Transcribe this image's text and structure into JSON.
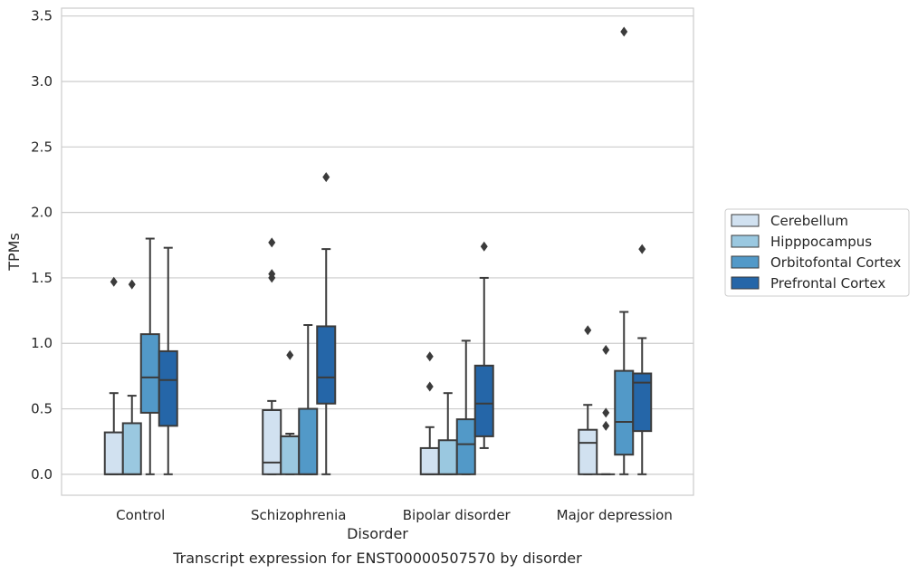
{
  "caption": "Transcript expression for ENST00000507570 by disorder",
  "chart_data": {
    "type": "box",
    "title": "",
    "xlabel": "Disorder",
    "ylabel": "TPMs",
    "categories": [
      "Control",
      "Schizophrenia",
      "Bipolar disorder",
      "Major depression"
    ],
    "ylim": [
      -0.16,
      3.56
    ],
    "yticks": [
      "0.0",
      "0.5",
      "1.0",
      "1.5",
      "2.0",
      "2.5",
      "3.0",
      "3.5"
    ],
    "grid": "horizontal",
    "legend_position": "right",
    "series": [
      {
        "name": "Cerebellum",
        "color": "#d1e1f0",
        "boxes": [
          {
            "q1": 0.0,
            "median": 0.0,
            "q3": 0.32,
            "whisker_low": 0.0,
            "whisker_high": 0.62,
            "outliers": [
              1.47
            ]
          },
          {
            "q1": 0.0,
            "median": 0.09,
            "q3": 0.49,
            "whisker_low": 0.0,
            "whisker_high": 0.56,
            "outliers": [
              1.5,
              1.53,
              1.77
            ]
          },
          {
            "q1": 0.0,
            "median": 0.0,
            "q3": 0.2,
            "whisker_low": 0.0,
            "whisker_high": 0.36,
            "outliers": [
              0.67,
              0.9
            ]
          },
          {
            "q1": 0.0,
            "median": 0.24,
            "q3": 0.34,
            "whisker_low": 0.0,
            "whisker_high": 0.53,
            "outliers": [
              1.1
            ]
          }
        ]
      },
      {
        "name": "Hipppocampus",
        "color": "#9ac8e0",
        "boxes": [
          {
            "q1": 0.0,
            "median": 0.0,
            "q3": 0.39,
            "whisker_low": 0.0,
            "whisker_high": 0.6,
            "outliers": [
              1.45
            ]
          },
          {
            "q1": 0.0,
            "median": 0.29,
            "q3": 0.29,
            "whisker_low": 0.0,
            "whisker_high": 0.31,
            "outliers": [
              0.91
            ]
          },
          {
            "q1": 0.0,
            "median": 0.0,
            "q3": 0.26,
            "whisker_low": 0.0,
            "whisker_high": 0.62,
            "outliers": []
          },
          {
            "q1": 0.0,
            "median": 0.0,
            "q3": 0.0,
            "whisker_low": 0.0,
            "whisker_high": 0.0,
            "outliers": [
              0.37,
              0.47,
              0.95
            ]
          }
        ]
      },
      {
        "name": "Orbitofontal Cortex",
        "color": "#5299c8",
        "boxes": [
          {
            "q1": 0.47,
            "median": 0.74,
            "q3": 1.07,
            "whisker_low": 0.0,
            "whisker_high": 1.8,
            "outliers": []
          },
          {
            "q1": 0.0,
            "median": 0.0,
            "q3": 0.5,
            "whisker_low": 0.0,
            "whisker_high": 1.14,
            "outliers": []
          },
          {
            "q1": 0.0,
            "median": 0.23,
            "q3": 0.42,
            "whisker_low": 0.0,
            "whisker_high": 1.02,
            "outliers": []
          },
          {
            "q1": 0.15,
            "median": 0.4,
            "q3": 0.79,
            "whisker_low": 0.0,
            "whisker_high": 1.24,
            "outliers": [
              3.38
            ]
          }
        ]
      },
      {
        "name": "Prefrontal Cortex",
        "color": "#2566a8",
        "boxes": [
          {
            "q1": 0.37,
            "median": 0.72,
            "q3": 0.94,
            "whisker_low": 0.0,
            "whisker_high": 1.73,
            "outliers": []
          },
          {
            "q1": 0.54,
            "median": 0.74,
            "q3": 1.13,
            "whisker_low": 0.0,
            "whisker_high": 1.72,
            "outliers": [
              2.27
            ]
          },
          {
            "q1": 0.29,
            "median": 0.54,
            "q3": 0.83,
            "whisker_low": 0.2,
            "whisker_high": 1.5,
            "outliers": [
              1.74
            ]
          },
          {
            "q1": 0.33,
            "median": 0.7,
            "q3": 0.77,
            "whisker_low": 0.0,
            "whisker_high": 1.04,
            "outliers": [
              1.72
            ]
          }
        ]
      }
    ]
  }
}
